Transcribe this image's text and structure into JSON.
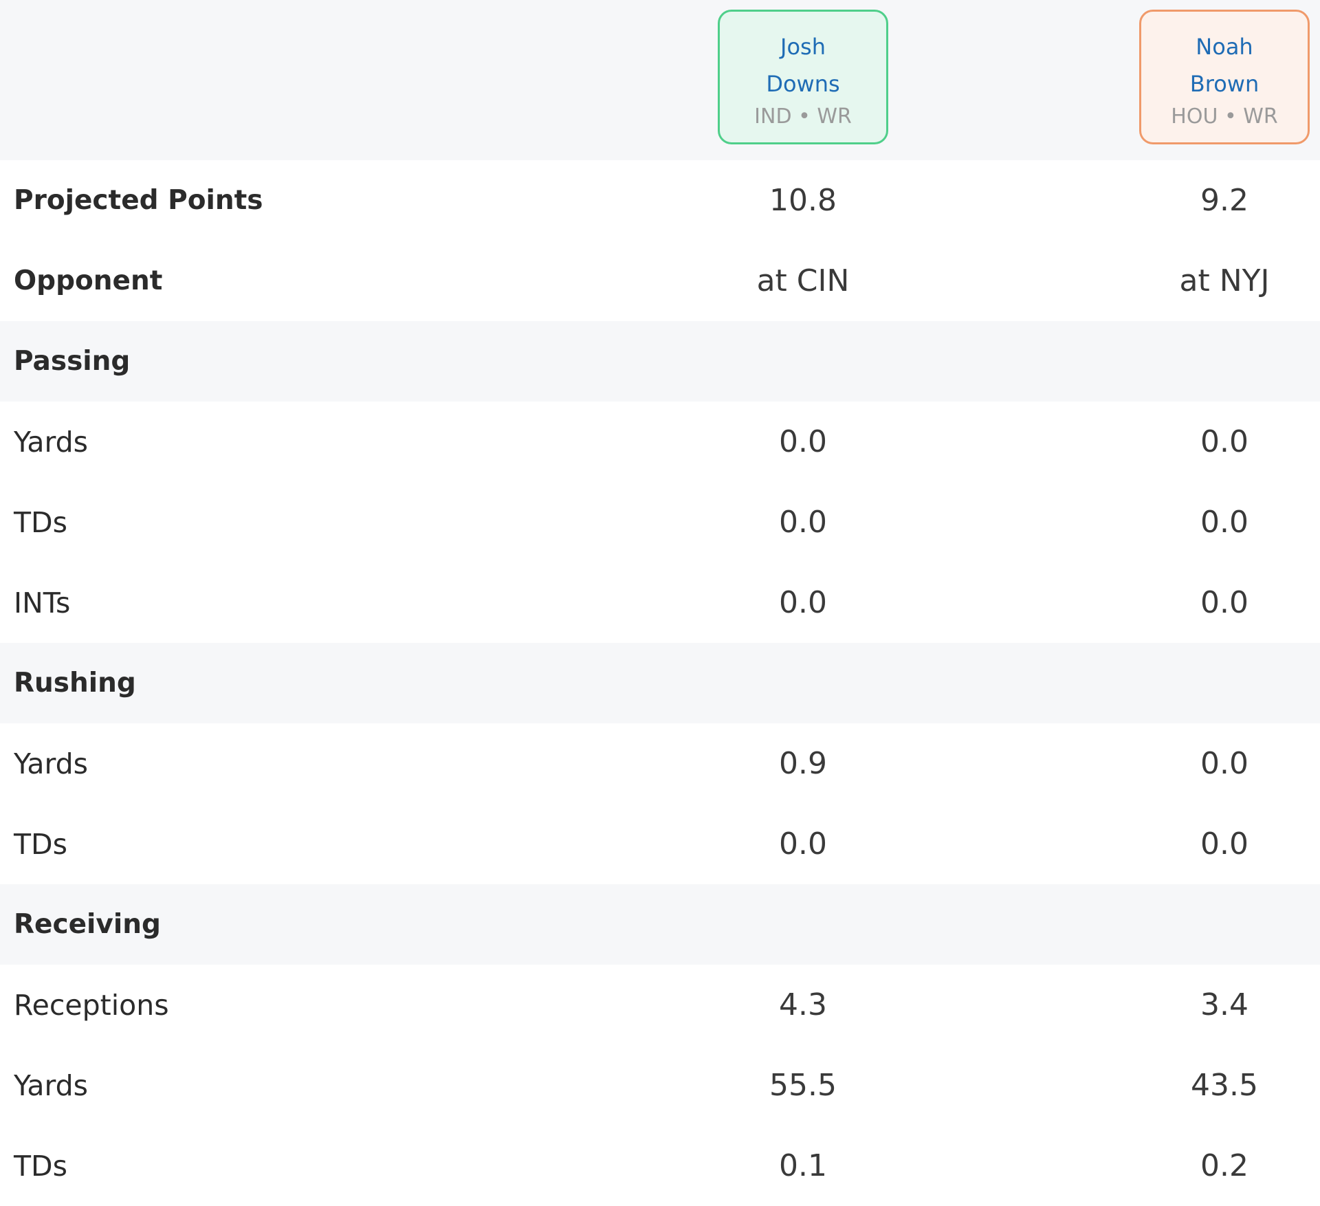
{
  "players": [
    {
      "first": "Josh",
      "last": "Downs",
      "meta": "IND • WR"
    },
    {
      "first": "Noah",
      "last": "Brown",
      "meta": "HOU • WR"
    }
  ],
  "rows": {
    "projected_points": {
      "label": "Projected Points",
      "v1": "10.8",
      "v2": "9.2"
    },
    "opponent": {
      "label": "Opponent",
      "v1": "at CIN",
      "v2": "at NYJ"
    },
    "passing_header": {
      "label": "Passing"
    },
    "passing_yards": {
      "label": "Yards",
      "v1": "0.0",
      "v2": "0.0"
    },
    "passing_tds": {
      "label": "TDs",
      "v1": "0.0",
      "v2": "0.0"
    },
    "passing_ints": {
      "label": "INTs",
      "v1": "0.0",
      "v2": "0.0"
    },
    "rushing_header": {
      "label": "Rushing"
    },
    "rushing_yards": {
      "label": "Yards",
      "v1": "0.9",
      "v2": "0.0"
    },
    "rushing_tds": {
      "label": "TDs",
      "v1": "0.0",
      "v2": "0.0"
    },
    "receiving_header": {
      "label": "Receiving"
    },
    "receiving_receptions": {
      "label": "Receptions",
      "v1": "4.3",
      "v2": "3.4"
    },
    "receiving_yards": {
      "label": "Yards",
      "v1": "55.5",
      "v2": "43.5"
    },
    "receiving_tds": {
      "label": "TDs",
      "v1": "0.1",
      "v2": "0.2"
    }
  }
}
